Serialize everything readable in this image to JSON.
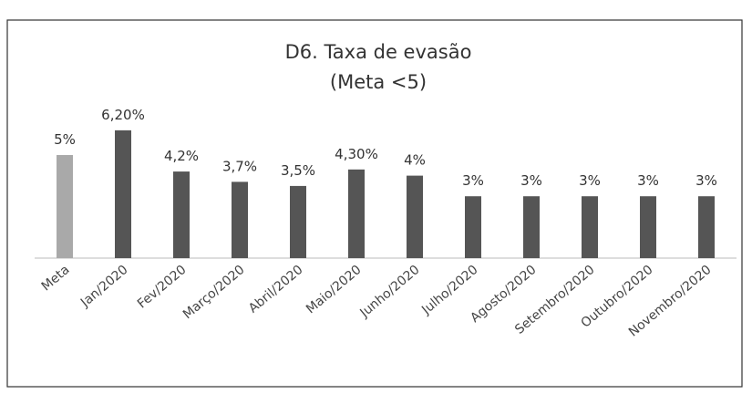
{
  "chart_data": {
    "type": "bar",
    "title": "D6. Taxa de evasão",
    "subtitle": "(Meta <5)",
    "categories": [
      "Meta",
      "Jan/2020",
      "Fev/2020",
      "Março/2020",
      "Abril/2020",
      "Maio/2020",
      "Junho/2020",
      "Julho/2020",
      "Agosto/2020",
      "Setembro/2020",
      "Outubro/2020",
      "Novembro/2020"
    ],
    "values": [
      5,
      6.2,
      4.2,
      3.7,
      3.5,
      4.3,
      4,
      3,
      3,
      3,
      3,
      3
    ],
    "value_labels": [
      "5%",
      "6,20%",
      "4,2%",
      "3,7%",
      "3,5%",
      "4,30%",
      "4%",
      "3%",
      "3%",
      "3%",
      "3%",
      "3%"
    ],
    "colors": [
      "#a9a9a9",
      "#555555",
      "#555555",
      "#555555",
      "#555555",
      "#555555",
      "#555555",
      "#555555",
      "#555555",
      "#555555",
      "#555555",
      "#555555"
    ]
  }
}
